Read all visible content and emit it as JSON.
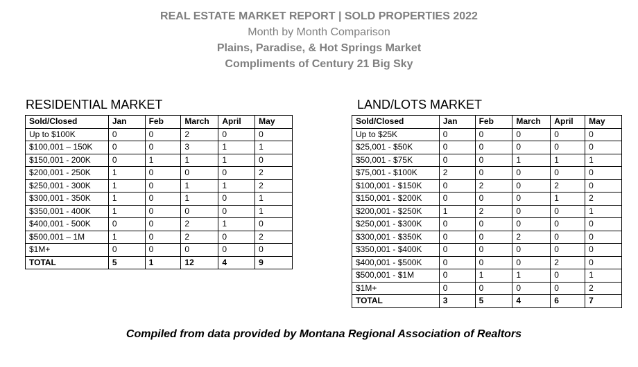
{
  "header": {
    "title": "REAL ESTATE MARKET REPORT | SOLD PROPERTIES 2022",
    "subtitle": "Month by Month Comparison",
    "market": "Plains, Paradise, & Hot Springs Market",
    "compliments": "Compliments of Century 21 Big Sky",
    "text_color": "#7f7f7f"
  },
  "residential": {
    "title": "RESIDENTIAL MARKET",
    "columns": [
      "Sold/Closed",
      "Jan",
      "Feb",
      "March",
      "April",
      "May"
    ],
    "rows": [
      [
        "Up to $100K",
        "0",
        "0",
        "2",
        "0",
        "0"
      ],
      [
        "$100,001 – 150K",
        "0",
        "0",
        "3",
        "1",
        "1"
      ],
      [
        "$150,001 - 200K",
        "0",
        "1",
        "1",
        "1",
        "0"
      ],
      [
        "$200,001 - 250K",
        "1",
        "0",
        "0",
        "0",
        "2"
      ],
      [
        "$250,001 - 300K",
        "1",
        "0",
        "1",
        "1",
        "2"
      ],
      [
        "$300,001 - 350K",
        "1",
        "0",
        "1",
        "0",
        "1"
      ],
      [
        "$350,001 - 400K",
        "1",
        "0",
        "0",
        "0",
        "1"
      ],
      [
        "$400,001 - 500K",
        "0",
        "0",
        "2",
        "1",
        "0"
      ],
      [
        "$500,001 – 1M",
        "1",
        "0",
        "2",
        "0",
        "2"
      ],
      [
        "$1M+",
        "0",
        "0",
        "0",
        "0",
        "0"
      ]
    ],
    "total": [
      "TOTAL",
      "5",
      "1",
      "12",
      "4",
      "9"
    ]
  },
  "land": {
    "title": "LAND/LOTS MARKET",
    "columns": [
      "Sold/Closed",
      "Jan",
      "Feb",
      "March",
      "April",
      "May"
    ],
    "rows": [
      [
        "Up to $25K",
        "0",
        "0",
        "0",
        "0",
        "0"
      ],
      [
        "$25,001 - $50K",
        "0",
        "0",
        "0",
        "0",
        "0"
      ],
      [
        "$50,001 - $75K",
        "0",
        "0",
        "1",
        "1",
        "1"
      ],
      [
        "$75,001 - $100K",
        "2",
        "0",
        "0",
        "0",
        "0"
      ],
      [
        "$100,001 - $150K",
        "0",
        "2",
        "0",
        "2",
        "0"
      ],
      [
        "$150,001 - $200K",
        "0",
        "0",
        "0",
        "1",
        "2"
      ],
      [
        "$200,001 - $250K",
        "1",
        "2",
        "0",
        "0",
        "1"
      ],
      [
        "$250,001 - $300K",
        "0",
        "0",
        "0",
        "0",
        "0"
      ],
      [
        "$300,001 - $350K",
        "0",
        "0",
        "2",
        "0",
        "0"
      ],
      [
        "$350,001 - $400K",
        "0",
        "0",
        "0",
        "0",
        "0"
      ],
      [
        "$400,001 - $500K",
        "0",
        "0",
        "0",
        "2",
        "0"
      ],
      [
        "$500,001 - $1M",
        "0",
        "1",
        "1",
        "0",
        "1"
      ],
      [
        "$1M+",
        "0",
        "0",
        "0",
        "0",
        "2"
      ]
    ],
    "total": [
      "TOTAL",
      "3",
      "5",
      "4",
      "6",
      "7"
    ]
  },
  "footer": {
    "text": "Compiled from data provided by Montana Regional Association of Realtors"
  }
}
